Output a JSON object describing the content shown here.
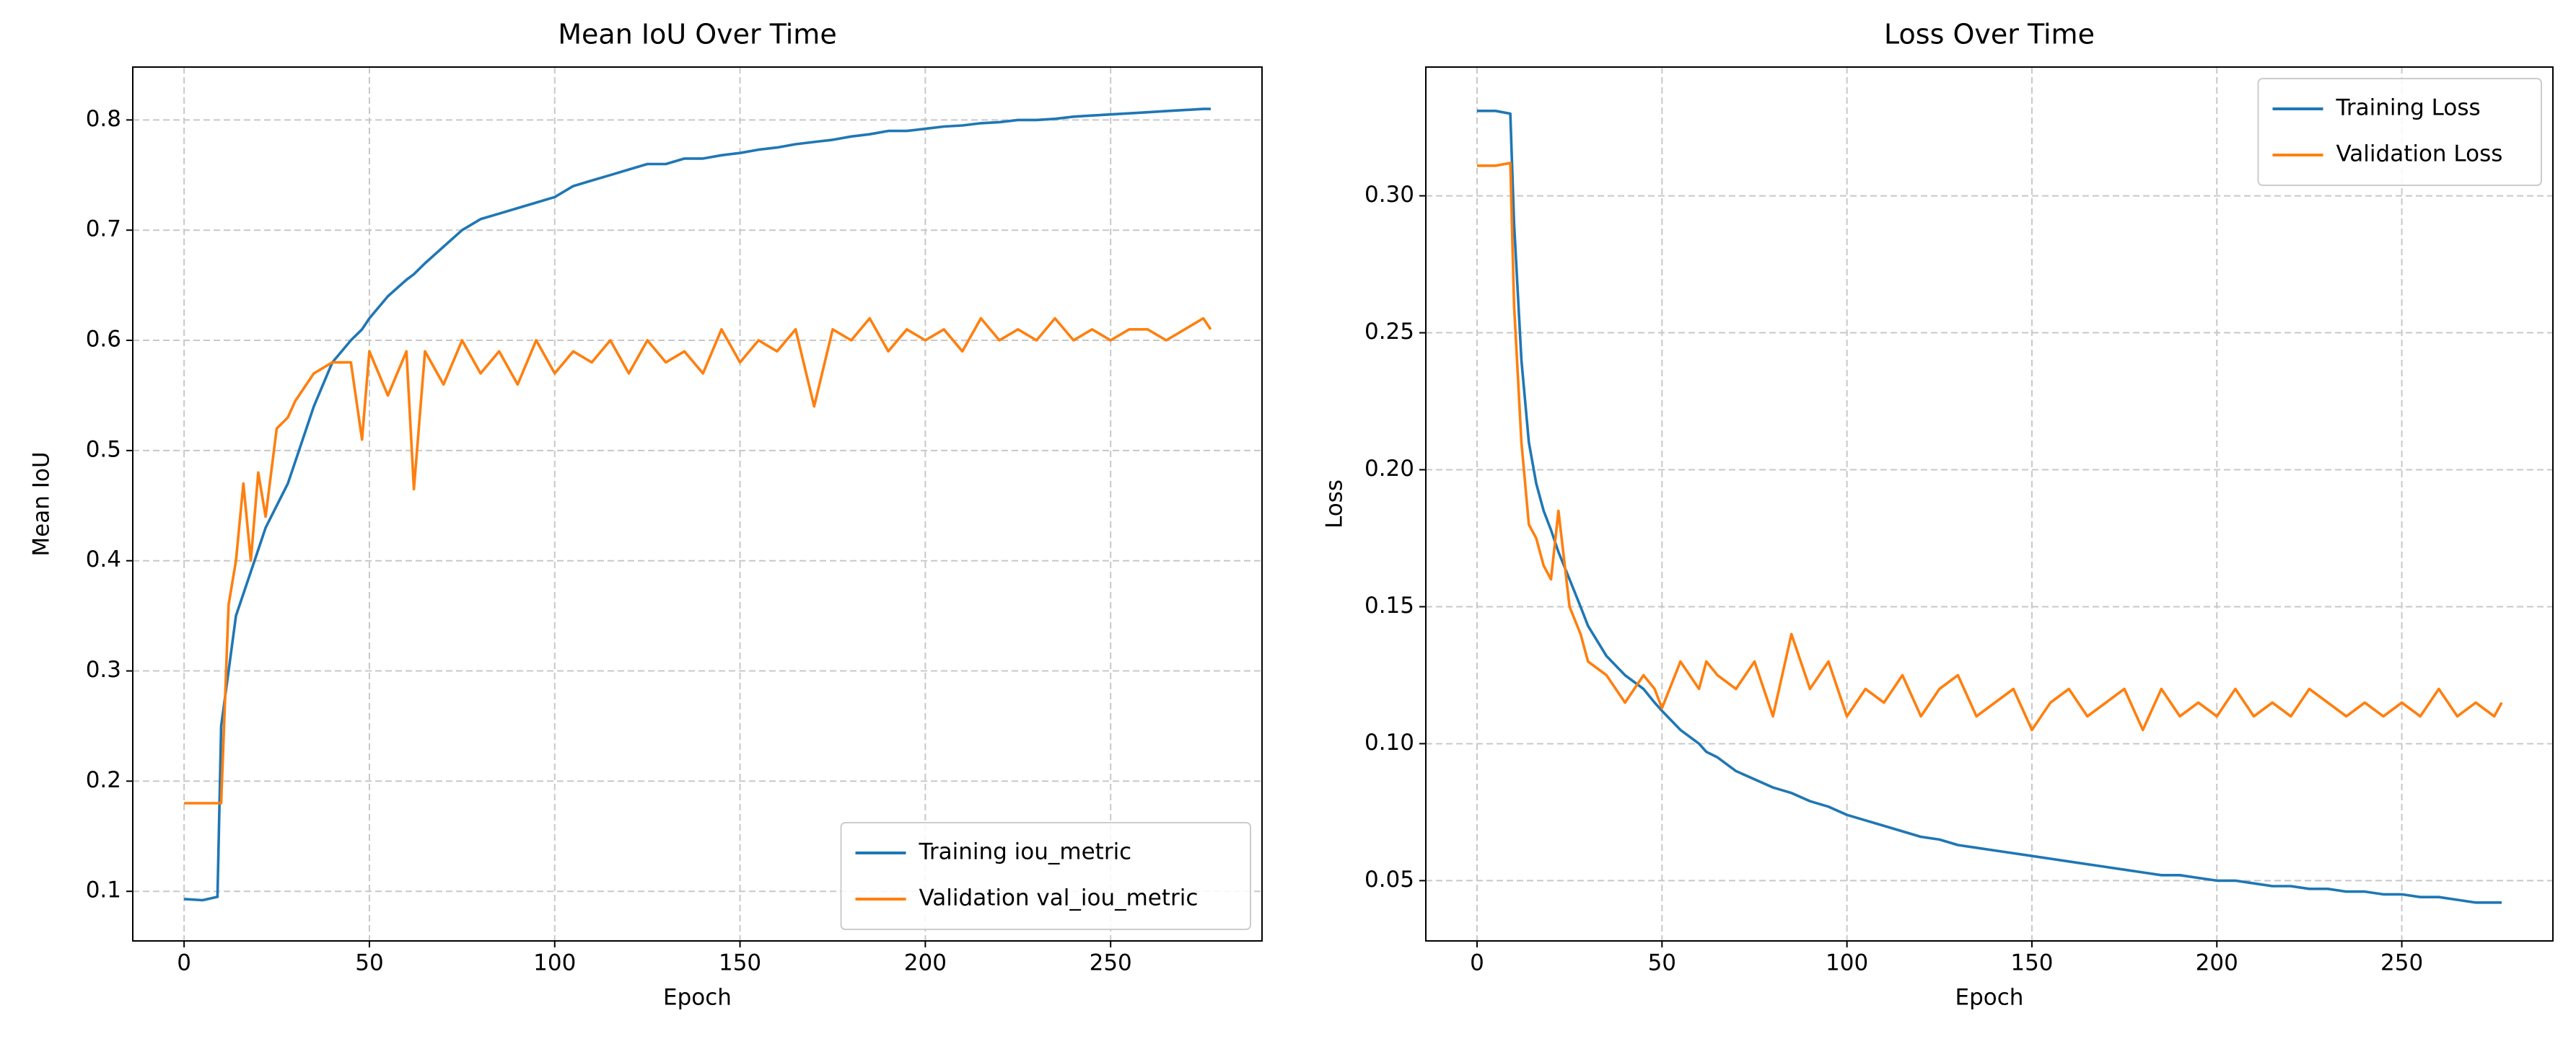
{
  "chart_data": [
    {
      "type": "line",
      "title": "Mean IoU Over Time",
      "x_label": "Epoch",
      "y_label": "Mean IoU",
      "x": [
        0,
        5,
        9,
        10,
        12,
        14,
        16,
        18,
        20,
        22,
        25,
        28,
        30,
        35,
        40,
        45,
        48,
        50,
        55,
        60,
        62,
        65,
        70,
        75,
        80,
        85,
        90,
        95,
        100,
        105,
        110,
        115,
        120,
        125,
        130,
        135,
        140,
        145,
        150,
        155,
        160,
        165,
        170,
        175,
        180,
        185,
        190,
        195,
        200,
        205,
        210,
        215,
        220,
        225,
        230,
        235,
        240,
        245,
        250,
        255,
        260,
        265,
        270,
        275,
        277
      ],
      "series": [
        {
          "name": "Training iou_metric",
          "color": "#1f77b4",
          "values": [
            0.093,
            0.092,
            0.095,
            0.25,
            0.3,
            0.35,
            0.37,
            0.39,
            0.41,
            0.43,
            0.45,
            0.47,
            0.49,
            0.54,
            0.58,
            0.6,
            0.61,
            0.62,
            0.64,
            0.655,
            0.66,
            0.67,
            0.685,
            0.7,
            0.71,
            0.715,
            0.72,
            0.725,
            0.73,
            0.74,
            0.745,
            0.75,
            0.755,
            0.76,
            0.76,
            0.765,
            0.765,
            0.768,
            0.77,
            0.773,
            0.775,
            0.778,
            0.78,
            0.782,
            0.785,
            0.787,
            0.79,
            0.79,
            0.792,
            0.794,
            0.795,
            0.797,
            0.798,
            0.8,
            0.8,
            0.801,
            0.803,
            0.804,
            0.805,
            0.806,
            0.807,
            0.808,
            0.809,
            0.81,
            0.81
          ]
        },
        {
          "name": "Validation val_iou_metric",
          "color": "#ff7f0e",
          "values": [
            0.18,
            0.18,
            0.18,
            0.18,
            0.36,
            0.4,
            0.47,
            0.4,
            0.48,
            0.44,
            0.52,
            0.53,
            0.545,
            0.57,
            0.58,
            0.58,
            0.51,
            0.59,
            0.55,
            0.59,
            0.465,
            0.59,
            0.56,
            0.6,
            0.57,
            0.59,
            0.56,
            0.6,
            0.57,
            0.59,
            0.58,
            0.6,
            0.57,
            0.6,
            0.58,
            0.59,
            0.57,
            0.61,
            0.58,
            0.6,
            0.59,
            0.61,
            0.54,
            0.61,
            0.6,
            0.62,
            0.59,
            0.61,
            0.6,
            0.61,
            0.59,
            0.62,
            0.6,
            0.61,
            0.6,
            0.62,
            0.6,
            0.61,
            0.6,
            0.61,
            0.61,
            0.6,
            0.61,
            0.62,
            0.61
          ]
        }
      ],
      "xlim": [
        -13.85,
        290.85
      ],
      "xticks": [
        0,
        50,
        100,
        150,
        200,
        250
      ],
      "ylim": [
        0.055,
        0.848
      ],
      "yticks": [
        0.1,
        0.2,
        0.3,
        0.4,
        0.5,
        0.6,
        0.7,
        0.8
      ],
      "grid": true,
      "legend": "lower right"
    },
    {
      "type": "line",
      "title": "Loss Over Time",
      "x_label": "Epoch",
      "y_label": "Loss",
      "x": [
        0,
        5,
        9,
        10,
        12,
        14,
        16,
        18,
        20,
        22,
        25,
        28,
        30,
        35,
        40,
        45,
        48,
        50,
        55,
        60,
        62,
        65,
        70,
        75,
        80,
        85,
        90,
        95,
        100,
        105,
        110,
        115,
        120,
        125,
        130,
        135,
        140,
        145,
        150,
        155,
        160,
        165,
        170,
        175,
        180,
        185,
        190,
        195,
        200,
        205,
        210,
        215,
        220,
        225,
        230,
        235,
        240,
        245,
        250,
        255,
        260,
        265,
        270,
        275,
        277
      ],
      "series": [
        {
          "name": "Training Loss",
          "color": "#1f77b4",
          "values": [
            0.331,
            0.331,
            0.33,
            0.29,
            0.24,
            0.21,
            0.195,
            0.185,
            0.178,
            0.17,
            0.16,
            0.15,
            0.143,
            0.132,
            0.125,
            0.12,
            0.115,
            0.112,
            0.105,
            0.1,
            0.097,
            0.095,
            0.09,
            0.087,
            0.084,
            0.082,
            0.079,
            0.077,
            0.074,
            0.072,
            0.07,
            0.068,
            0.066,
            0.065,
            0.063,
            0.062,
            0.061,
            0.06,
            0.059,
            0.058,
            0.057,
            0.056,
            0.055,
            0.054,
            0.053,
            0.052,
            0.052,
            0.051,
            0.05,
            0.05,
            0.049,
            0.048,
            0.048,
            0.047,
            0.047,
            0.046,
            0.046,
            0.045,
            0.045,
            0.044,
            0.044,
            0.043,
            0.042,
            0.042,
            0.042
          ]
        },
        {
          "name": "Validation Loss",
          "color": "#ff7f0e",
          "values": [
            0.311,
            0.311,
            0.312,
            0.26,
            0.21,
            0.18,
            0.175,
            0.165,
            0.16,
            0.185,
            0.15,
            0.14,
            0.13,
            0.125,
            0.115,
            0.125,
            0.12,
            0.113,
            0.13,
            0.12,
            0.13,
            0.125,
            0.12,
            0.13,
            0.11,
            0.14,
            0.12,
            0.13,
            0.11,
            0.12,
            0.115,
            0.125,
            0.11,
            0.12,
            0.125,
            0.11,
            0.115,
            0.12,
            0.105,
            0.115,
            0.12,
            0.11,
            0.115,
            0.12,
            0.105,
            0.12,
            0.11,
            0.115,
            0.11,
            0.12,
            0.11,
            0.115,
            0.11,
            0.12,
            0.115,
            0.11,
            0.115,
            0.11,
            0.115,
            0.11,
            0.12,
            0.11,
            0.115,
            0.11,
            0.115
          ]
        }
      ],
      "xlim": [
        -13.85,
        290.85
      ],
      "xticks": [
        0,
        50,
        100,
        150,
        200,
        250
      ],
      "ylim": [
        0.028,
        0.347
      ],
      "yticks": [
        0.05,
        {
          "value": 0.1,
          "label": "0.10"
        },
        0.15,
        {
          "value": 0.2,
          "label": "0.20"
        },
        0.25,
        {
          "value": 0.3,
          "label": "0.30"
        }
      ],
      "grid": true,
      "legend": "upper right"
    }
  ]
}
